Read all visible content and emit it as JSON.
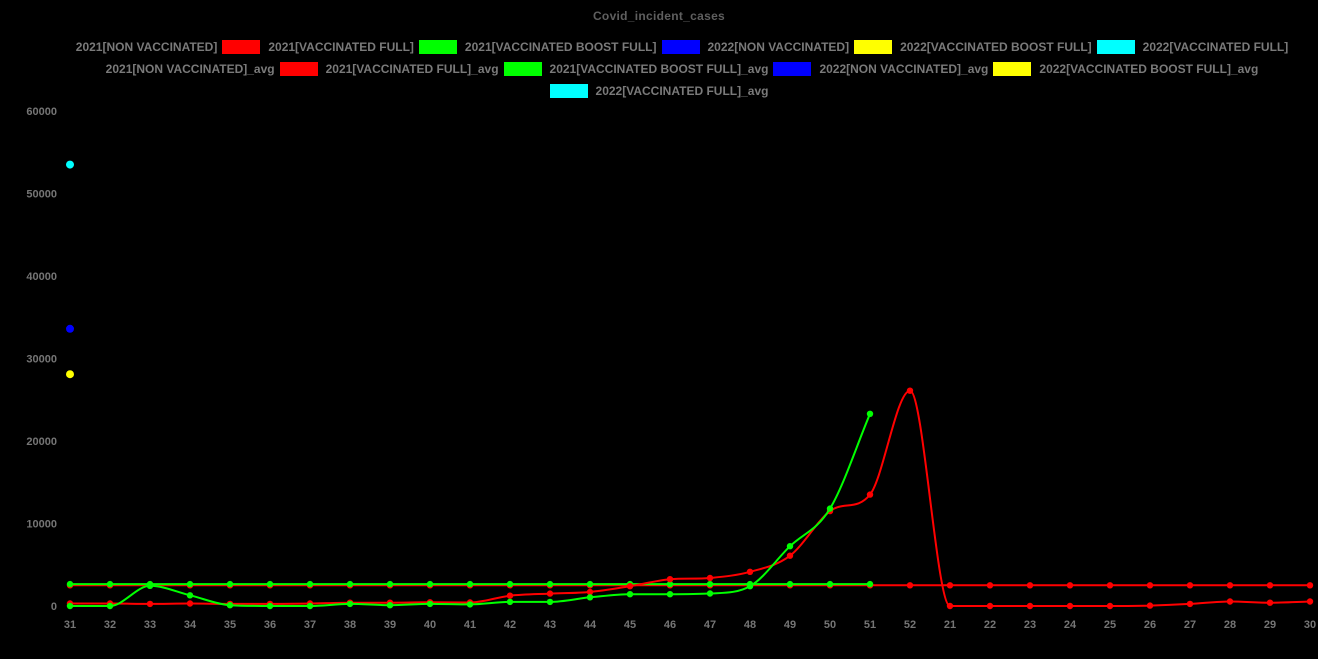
{
  "title": "Covid_incident_cases",
  "background": "#000000",
  "colors": {
    "title_text": "#5f5f5f",
    "legend_text": "#7a7a7a",
    "tick_text": "#757575",
    "red": "#ff0000",
    "green": "#00ff00",
    "blue": "#0000ff",
    "yellow": "#ffff00",
    "cyan": "#00ffff",
    "black": "#000000"
  },
  "legend": {
    "rows": [
      [
        {
          "color": "#000000",
          "label": "2021[NON VACCINATED]"
        },
        {
          "color": "#ff0000",
          "label": "2021[VACCINATED FULL]"
        },
        {
          "color": "#00ff00",
          "label": "2021[VACCINATED BOOST FULL]"
        },
        {
          "color": "#0000ff",
          "label": "2022[NON VACCINATED]"
        },
        {
          "color": "#ffff00",
          "label": "2022[VACCINATED BOOST FULL]"
        },
        {
          "color": "#00ffff",
          "label": "2022[VACCINATED FULL]"
        }
      ],
      [
        {
          "color": "#000000",
          "label": "2021[NON VACCINATED]_avg"
        },
        {
          "color": "#ff0000",
          "label": "2021[VACCINATED FULL]_avg"
        },
        {
          "color": "#00ff00",
          "label": "2021[VACCINATED BOOST FULL]_avg"
        },
        {
          "color": "#0000ff",
          "label": "2022[NON VACCINATED]_avg"
        },
        {
          "color": "#ffff00",
          "label": "2022[VACCINATED BOOST FULL]_avg"
        }
      ],
      [
        {
          "color": "#00ffff",
          "label": "2022[VACCINATED FULL]_avg"
        }
      ]
    ]
  },
  "chart_data": {
    "type": "line",
    "title": "Covid_incident_cases",
    "xlabel": "",
    "ylabel": "",
    "grid": false,
    "legend_position": "top",
    "ylim": [
      0,
      60000
    ],
    "yticks": [
      0,
      10000,
      20000,
      30000,
      40000,
      50000,
      60000
    ],
    "x_categories": [
      "31",
      "32",
      "33",
      "34",
      "35",
      "36",
      "37",
      "38",
      "39",
      "40",
      "41",
      "42",
      "43",
      "44",
      "45",
      "46",
      "47",
      "48",
      "49",
      "50",
      "51",
      "52",
      "21",
      "22",
      "23",
      "24",
      "25",
      "26",
      "27",
      "28",
      "29",
      "30"
    ],
    "series": [
      {
        "name": "2021[NON VACCINATED]",
        "color": "#000000",
        "marker_radius": 4.2,
        "values": [
          2600
        ]
      },
      {
        "name": "2021[VACCINATED FULL]_avg",
        "color": "#ff0000",
        "marker_radius": 3.2,
        "constant": 2505,
        "count": 32
      },
      {
        "name": "2021[VACCINATED BOOST FULL]_avg",
        "color": "#00ff00",
        "marker_radius": 3.2,
        "constant": 2660,
        "count": 21
      },
      {
        "name": "2021[VACCINATED FULL]",
        "color": "#ff0000",
        "marker_radius": 3.2,
        "values": [
          300,
          300,
          250,
          300,
          250,
          250,
          300,
          400,
          400,
          450,
          420,
          1250,
          1500,
          1700,
          2400,
          3250,
          3400,
          4150,
          6100,
          11500,
          13500,
          26100,
          0,
          0,
          0,
          0,
          0,
          50,
          250,
          550,
          400,
          550
        ]
      },
      {
        "name": "2021[VACCINATED BOOST FULL]",
        "color": "#00ff00",
        "marker_radius": 3.2,
        "values": [
          0,
          0,
          2450,
          1300,
          100,
          0,
          0,
          250,
          100,
          250,
          200,
          500,
          500,
          1050,
          1430,
          1430,
          1520,
          2400,
          7250,
          11800,
          23300
        ]
      },
      {
        "name": "2022[VACCINATED BOOST FULL]",
        "color": "#ffff00",
        "marker_radius": 4,
        "values": [
          28100
        ]
      },
      {
        "name": "2022[NON VACCINATED]",
        "color": "#0000ff",
        "marker_radius": 4,
        "values": [
          33600
        ]
      },
      {
        "name": "2022[VACCINATED FULL]",
        "color": "#00ffff",
        "marker_radius": 4,
        "values": [
          53500
        ]
      }
    ]
  }
}
